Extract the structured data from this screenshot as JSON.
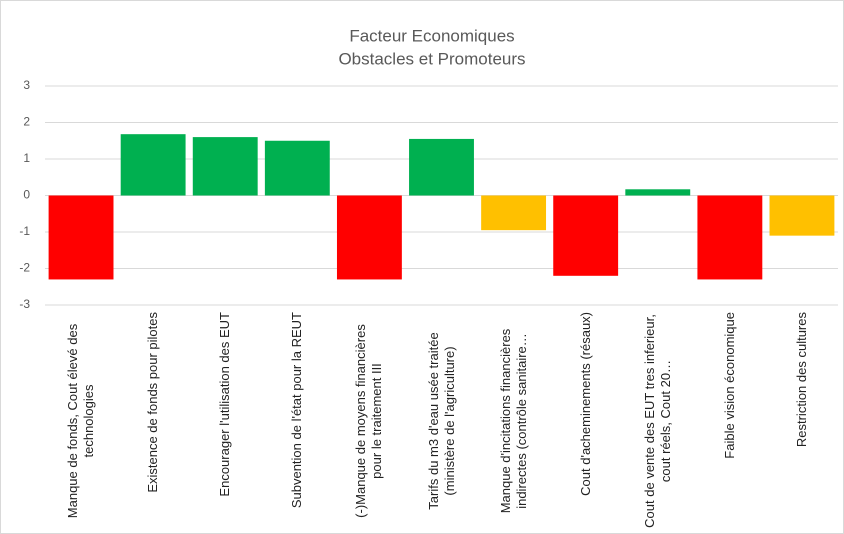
{
  "chart_data": {
    "type": "bar",
    "title": "Facteur Economiques",
    "subtitle": "Obstacles et Promoteurs",
    "categories": [
      "Manque de fonds, Cout élevé des technologies",
      "Existence de fonds pour pilotes",
      "Encourager l'utilisation des EUT",
      "Subvention de l'état pour la REUT",
      "(-)Manque de moyens financières pour le traitement III",
      "Tarifs du m3 d'eau usée traitée (ministère de l'agriculture)",
      "Manque d'incitations financières indirectes (contrôle sanitaire…",
      "Cout d'acheminements (résaux)",
      "Cout de vente des EUT tres inferieur, cout réels, Cout 20…",
      "Faible vision économique",
      "Restriction des cultures"
    ],
    "values": [
      -2.3,
      1.68,
      1.6,
      1.5,
      -2.3,
      1.55,
      -0.95,
      -2.2,
      0.17,
      -2.3,
      -1.1
    ],
    "colors": [
      "#ff0000",
      "#00b050",
      "#00b050",
      "#00b050",
      "#ff0000",
      "#00b050",
      "#ffc000",
      "#ff0000",
      "#00b050",
      "#ff0000",
      "#ffc000"
    ],
    "ylim": [
      -3,
      3
    ],
    "yticks": [
      -3,
      -2,
      -1,
      0,
      1,
      2,
      3
    ],
    "grid": true
  }
}
